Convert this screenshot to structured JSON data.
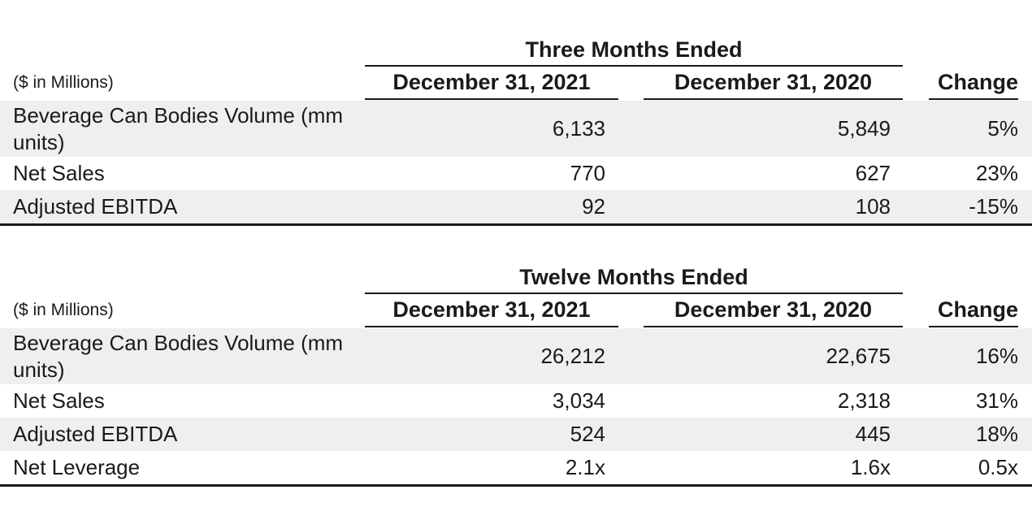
{
  "three_months": {
    "period_title": "Three Months Ended",
    "unit_label": "($ in Millions)",
    "columns": [
      "December 31, 2021",
      "December 31, 2020",
      "Change"
    ],
    "rows": [
      {
        "label": "Beverage Can Bodies Volume (mm units)",
        "v2021": "6,133",
        "v2020": "5,849",
        "change": "5%"
      },
      {
        "label": "Net Sales",
        "v2021": "770",
        "v2020": "627",
        "change": "23%"
      },
      {
        "label": "Adjusted EBITDA",
        "v2021": "92",
        "v2020": "108",
        "change": "-15%"
      }
    ]
  },
  "twelve_months": {
    "period_title": "Twelve Months Ended",
    "unit_label": "($ in Millions)",
    "columns": [
      "December 31, 2021",
      "December 31, 2020",
      "Change"
    ],
    "rows": [
      {
        "label": "Beverage Can Bodies Volume (mm units)",
        "v2021": "26,212",
        "v2020": "22,675",
        "change": "16%"
      },
      {
        "label": "Net Sales",
        "v2021": "3,034",
        "v2020": "2,318",
        "change": "31%"
      },
      {
        "label": "Adjusted EBITDA",
        "v2021": "524",
        "v2020": "445",
        "change": "18%"
      },
      {
        "label": "Net Leverage",
        "v2021": "2.1x",
        "v2020": "1.6x",
        "change": "0.5x"
      }
    ]
  },
  "colors": {
    "row_shade": "#efefef",
    "rule": "#1a1a1a",
    "text": "#1a1a1a"
  }
}
